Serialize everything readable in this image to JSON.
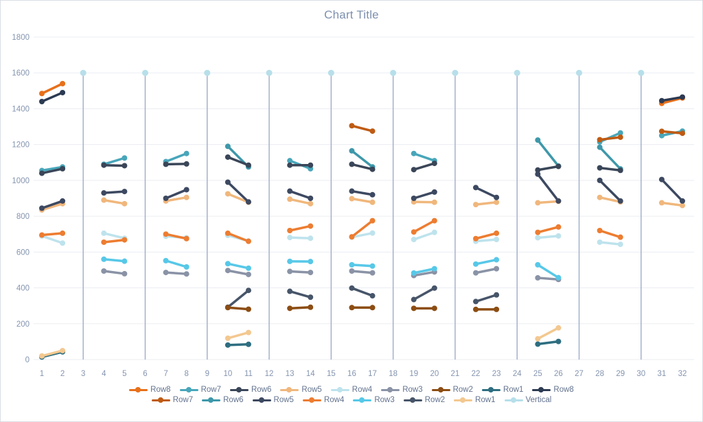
{
  "title": "Chart Title",
  "palette": {
    "title_color": "#7e90ae",
    "tick_label_color": "#8494af",
    "gridline_color": "#eaedf2",
    "vertical_line_color": "#a0abc8",
    "vertical_dot_color": "#b7dfea",
    "legend_text_color": "#63738f",
    "frame_border_color": "#d9dde3"
  },
  "chart_data": {
    "type": "line",
    "title": "Chart Title",
    "xlabel": "",
    "ylabel": "",
    "xlim": [
      0.4,
      32.6
    ],
    "ylim": [
      0,
      1800
    ],
    "grid": "horizontal",
    "x_ticks": [
      1,
      2,
      3,
      4,
      5,
      6,
      7,
      8,
      9,
      10,
      11,
      12,
      13,
      14,
      15,
      16,
      17,
      18,
      19,
      20,
      21,
      22,
      23,
      24,
      25,
      26,
      27,
      28,
      29,
      30,
      31,
      32
    ],
    "y_ticks": [
      0,
      200,
      400,
      600,
      800,
      1000,
      1200,
      1400,
      1600,
      1800
    ],
    "vertical_series": {
      "name": "Vertical",
      "x": [
        3,
        6,
        9,
        12,
        15,
        18,
        21,
        24,
        27,
        30
      ],
      "y_bottom": 0,
      "y_top": 1600,
      "line_color": "#a0abc8",
      "marker_color": "#b7dfea"
    },
    "series": [
      {
        "name": "Row1",
        "color": "#2e6e80",
        "segments": [
          [
            1,
            14,
            2,
            43
          ],
          [
            10,
            81,
            11,
            85
          ],
          [
            25,
            86,
            26,
            101
          ]
        ]
      },
      {
        "name": "Row4",
        "color": "#bee3ed",
        "segments": [
          [
            1,
            690,
            2,
            650
          ],
          [
            4,
            705,
            5,
            677
          ],
          [
            7,
            688,
            8,
            680
          ],
          [
            10,
            693,
            11,
            662
          ],
          [
            13,
            681,
            14,
            677
          ],
          [
            16,
            683,
            17,
            706
          ],
          [
            19,
            670,
            20,
            710
          ],
          [
            22,
            660,
            23,
            670
          ],
          [
            25,
            680,
            26,
            690
          ],
          [
            28,
            655,
            29,
            643
          ]
        ]
      },
      {
        "name": "Row5",
        "color": "#f0b77c",
        "segments": [
          [
            1,
            835,
            2,
            870
          ],
          [
            4,
            890,
            5,
            870
          ],
          [
            7,
            885,
            8,
            905
          ],
          [
            10,
            925,
            11,
            878
          ],
          [
            13,
            895,
            14,
            870
          ],
          [
            16,
            898,
            17,
            878
          ],
          [
            19,
            880,
            20,
            878
          ],
          [
            22,
            865,
            23,
            878
          ],
          [
            25,
            875,
            26,
            883
          ],
          [
            28,
            905,
            29,
            880
          ],
          [
            31,
            875,
            32,
            860
          ]
        ]
      },
      {
        "name": "Row3",
        "color": "#8a93a6",
        "segments": [
          [
            4,
            494,
            5,
            479
          ],
          [
            7,
            486,
            8,
            478
          ],
          [
            10,
            497,
            11,
            475
          ],
          [
            13,
            492,
            14,
            486
          ],
          [
            16,
            494,
            17,
            484
          ],
          [
            19,
            469,
            20,
            489
          ],
          [
            22,
            484,
            23,
            507
          ],
          [
            25,
            456,
            26,
            447
          ]
        ]
      },
      {
        "name": "Row2b",
        "color": "#475569",
        "segments": [
          [
            10,
            292,
            11,
            386
          ],
          [
            13,
            381,
            14,
            348
          ],
          [
            16,
            399,
            17,
            356
          ],
          [
            19,
            335,
            20,
            399
          ],
          [
            22,
            324,
            23,
            361
          ]
        ]
      },
      {
        "name": "Row2",
        "color": "#8c4d13",
        "segments": [
          [
            10,
            290,
            11,
            281
          ],
          [
            13,
            286,
            14,
            292
          ],
          [
            16,
            290,
            17,
            290
          ],
          [
            19,
            286,
            20,
            286
          ],
          [
            22,
            280,
            23,
            280
          ]
        ]
      },
      {
        "name": "Row3b",
        "color": "#57c8e8",
        "segments": [
          [
            4,
            560,
            5,
            549
          ],
          [
            7,
            552,
            8,
            517
          ],
          [
            10,
            535,
            11,
            510
          ],
          [
            13,
            548,
            14,
            547
          ],
          [
            16,
            529,
            17,
            522
          ],
          [
            19,
            483,
            20,
            507
          ],
          [
            22,
            533,
            23,
            557
          ],
          [
            25,
            529,
            26,
            457
          ]
        ]
      },
      {
        "name": "Row1b",
        "color": "#f3c890",
        "segments": [
          [
            1,
            20,
            2,
            50
          ],
          [
            10,
            119,
            11,
            151
          ],
          [
            25,
            116,
            26,
            177
          ]
        ]
      },
      {
        "name": "Row6b",
        "color": "#3e98aa",
        "segments": [
          [
            10,
            1190,
            11,
            1075
          ],
          [
            16,
            1165,
            17,
            1075
          ],
          [
            25,
            1225,
            26,
            1080
          ],
          [
            28,
            1185,
            29,
            1064
          ]
        ]
      },
      {
        "name": "Row7",
        "color": "#48a6ba",
        "segments": [
          [
            1,
            1055,
            2,
            1075
          ],
          [
            4,
            1090,
            5,
            1125
          ],
          [
            7,
            1105,
            8,
            1150
          ],
          [
            13,
            1110,
            14,
            1065
          ],
          [
            19,
            1150,
            20,
            1110
          ],
          [
            28,
            1215,
            29,
            1265
          ],
          [
            31,
            1250,
            32,
            1275
          ]
        ]
      },
      {
        "name": "Row6",
        "color": "#3a4658",
        "segments": [
          [
            1,
            1040,
            2,
            1065
          ],
          [
            4,
            1085,
            5,
            1082
          ],
          [
            7,
            1090,
            8,
            1092
          ],
          [
            10,
            1130,
            11,
            1085
          ],
          [
            13,
            1085,
            14,
            1085
          ],
          [
            16,
            1090,
            17,
            1062
          ],
          [
            19,
            1060,
            20,
            1095
          ],
          [
            25,
            1058,
            26,
            1078
          ],
          [
            28,
            1070,
            29,
            1056
          ]
        ]
      },
      {
        "name": "Row5b",
        "color": "#3d4961",
        "segments": [
          [
            1,
            845,
            2,
            885
          ],
          [
            4,
            930,
            5,
            938
          ],
          [
            7,
            900,
            8,
            948
          ],
          [
            10,
            990,
            11,
            880
          ],
          [
            13,
            940,
            14,
            900
          ],
          [
            16,
            940,
            17,
            920
          ],
          [
            19,
            900,
            20,
            935
          ],
          [
            22,
            960,
            23,
            905
          ],
          [
            25,
            1035,
            26,
            885
          ],
          [
            28,
            1000,
            29,
            885
          ],
          [
            31,
            1005,
            32,
            885
          ]
        ]
      },
      {
        "name": "Row4b",
        "color": "#ed7d31",
        "segments": [
          [
            1,
            695,
            2,
            705
          ],
          [
            4,
            655,
            5,
            668
          ],
          [
            7,
            700,
            8,
            675
          ],
          [
            10,
            705,
            11,
            660
          ],
          [
            13,
            720,
            14,
            745
          ],
          [
            16,
            685,
            17,
            775
          ],
          [
            19,
            712,
            20,
            775
          ],
          [
            22,
            675,
            23,
            705
          ],
          [
            25,
            710,
            26,
            740
          ],
          [
            28,
            720,
            29,
            683
          ]
        ]
      },
      {
        "name": "Row8",
        "color": "#e8701a",
        "segments": [
          [
            1,
            1485,
            2,
            1540
          ],
          [
            31,
            1430,
            32,
            1460
          ]
        ]
      },
      {
        "name": "Row7b",
        "color": "#bf5b13",
        "segments": [
          [
            16,
            1305,
            17,
            1275
          ],
          [
            28,
            1227,
            29,
            1241
          ],
          [
            31,
            1274,
            32,
            1263
          ]
        ]
      },
      {
        "name": "Row8b",
        "color": "#2c3a52",
        "segments": [
          [
            1,
            1440,
            2,
            1490
          ],
          [
            31,
            1445,
            32,
            1465
          ]
        ]
      }
    ],
    "legend": {
      "position": "bottom",
      "rows": [
        [
          {
            "label": "Row8",
            "color": "#e8701a"
          },
          {
            "label": "Row7",
            "color": "#48a6ba"
          },
          {
            "label": "Row6",
            "color": "#3a4658"
          },
          {
            "label": "Row5",
            "color": "#f0b77c"
          },
          {
            "label": "Row4",
            "color": "#bee3ed"
          },
          {
            "label": "Row3",
            "color": "#8a93a6"
          },
          {
            "label": "Row2",
            "color": "#8c4d13"
          },
          {
            "label": "Row1",
            "color": "#2e6e80"
          },
          {
            "label": "Row8",
            "color": "#2c3a52"
          }
        ],
        [
          {
            "label": "Row7",
            "color": "#bf5b13"
          },
          {
            "label": "Row6",
            "color": "#3e98aa"
          },
          {
            "label": "Row5",
            "color": "#3d4961"
          },
          {
            "label": "Row4",
            "color": "#ed7d31"
          },
          {
            "label": "Row3",
            "color": "#57c8e8"
          },
          {
            "label": "Row2",
            "color": "#475569"
          },
          {
            "label": "Row1",
            "color": "#f3c890"
          },
          {
            "label": "Vertical",
            "color": "#b7dfea"
          }
        ]
      ]
    }
  }
}
